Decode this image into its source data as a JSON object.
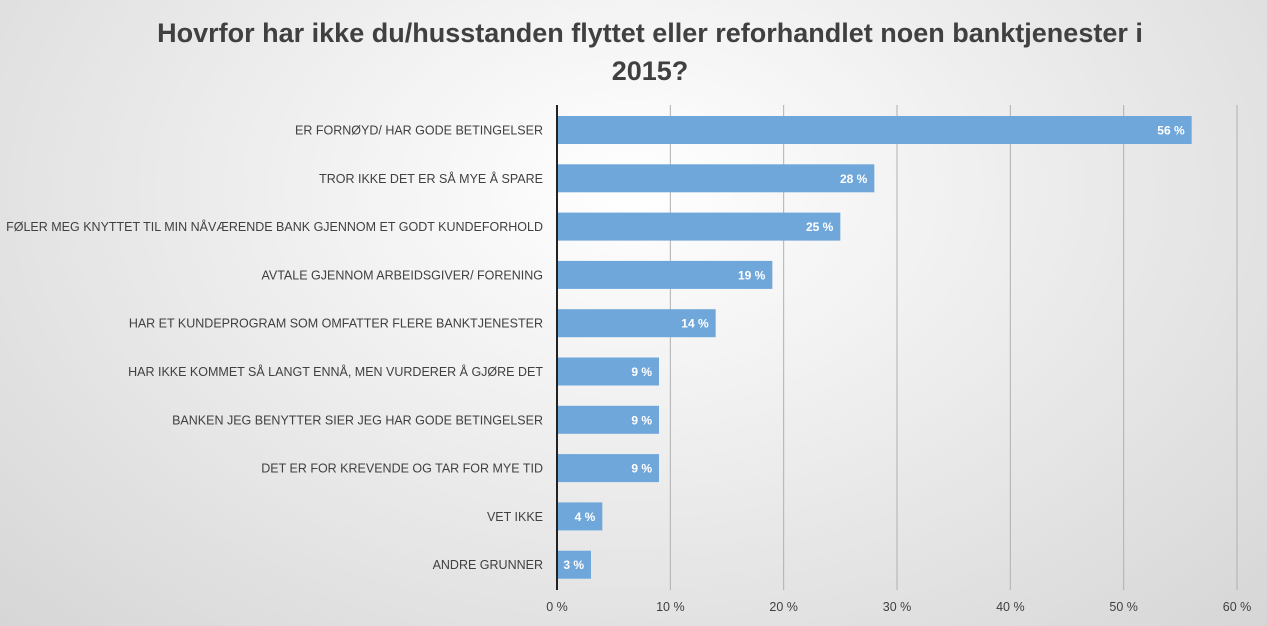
{
  "chart_data": {
    "type": "bar",
    "orientation": "horizontal",
    "title": "Hovrfor har ikke du/husstanden flyttet eller reforhandlet noen banktjenester i 2015?",
    "categories": [
      "ER FORNØYD/ HAR GODE BETINGELSER",
      "TROR IKKE DET ER SÅ MYE Å SPARE",
      "FØLER MEG KNYTTET TIL MIN NÅVÆRENDE BANK GJENNOM ET GODT KUNDEFORHOLD",
      "AVTALE GJENNOM ARBEIDSGIVER/ FORENING",
      "HAR ET KUNDEPROGRAM SOM OMFATTER FLERE BANKTJENESTER",
      "HAR IKKE KOMMET SÅ LANGT ENNÅ, MEN VURDERER Å GJØRE DET",
      "BANKEN JEG BENYTTER SIER JEG HAR GODE BETINGELSER",
      "DET ER FOR KREVENDE OG TAR FOR MYE TID",
      "VET IKKE",
      "ANDRE GRUNNER"
    ],
    "values": [
      56,
      28,
      25,
      19,
      14,
      9,
      9,
      9,
      4,
      3
    ],
    "data_labels": [
      "56 %",
      "28 %",
      "25 %",
      "19 %",
      "14 %",
      "9 %",
      "9 %",
      "9 %",
      "4 %",
      "3 %"
    ],
    "xlim": [
      0,
      60
    ],
    "xticks": [
      0,
      10,
      20,
      30,
      40,
      50,
      60
    ],
    "xtick_labels": [
      "0 %",
      "10 %",
      "20 %",
      "30 %",
      "40 %",
      "50 %",
      "60 %"
    ],
    "xlabel": "",
    "ylabel": "",
    "grid": "vertical",
    "legend": "none",
    "bar_color": "#6fa7da",
    "label_color": "#ffffff"
  }
}
